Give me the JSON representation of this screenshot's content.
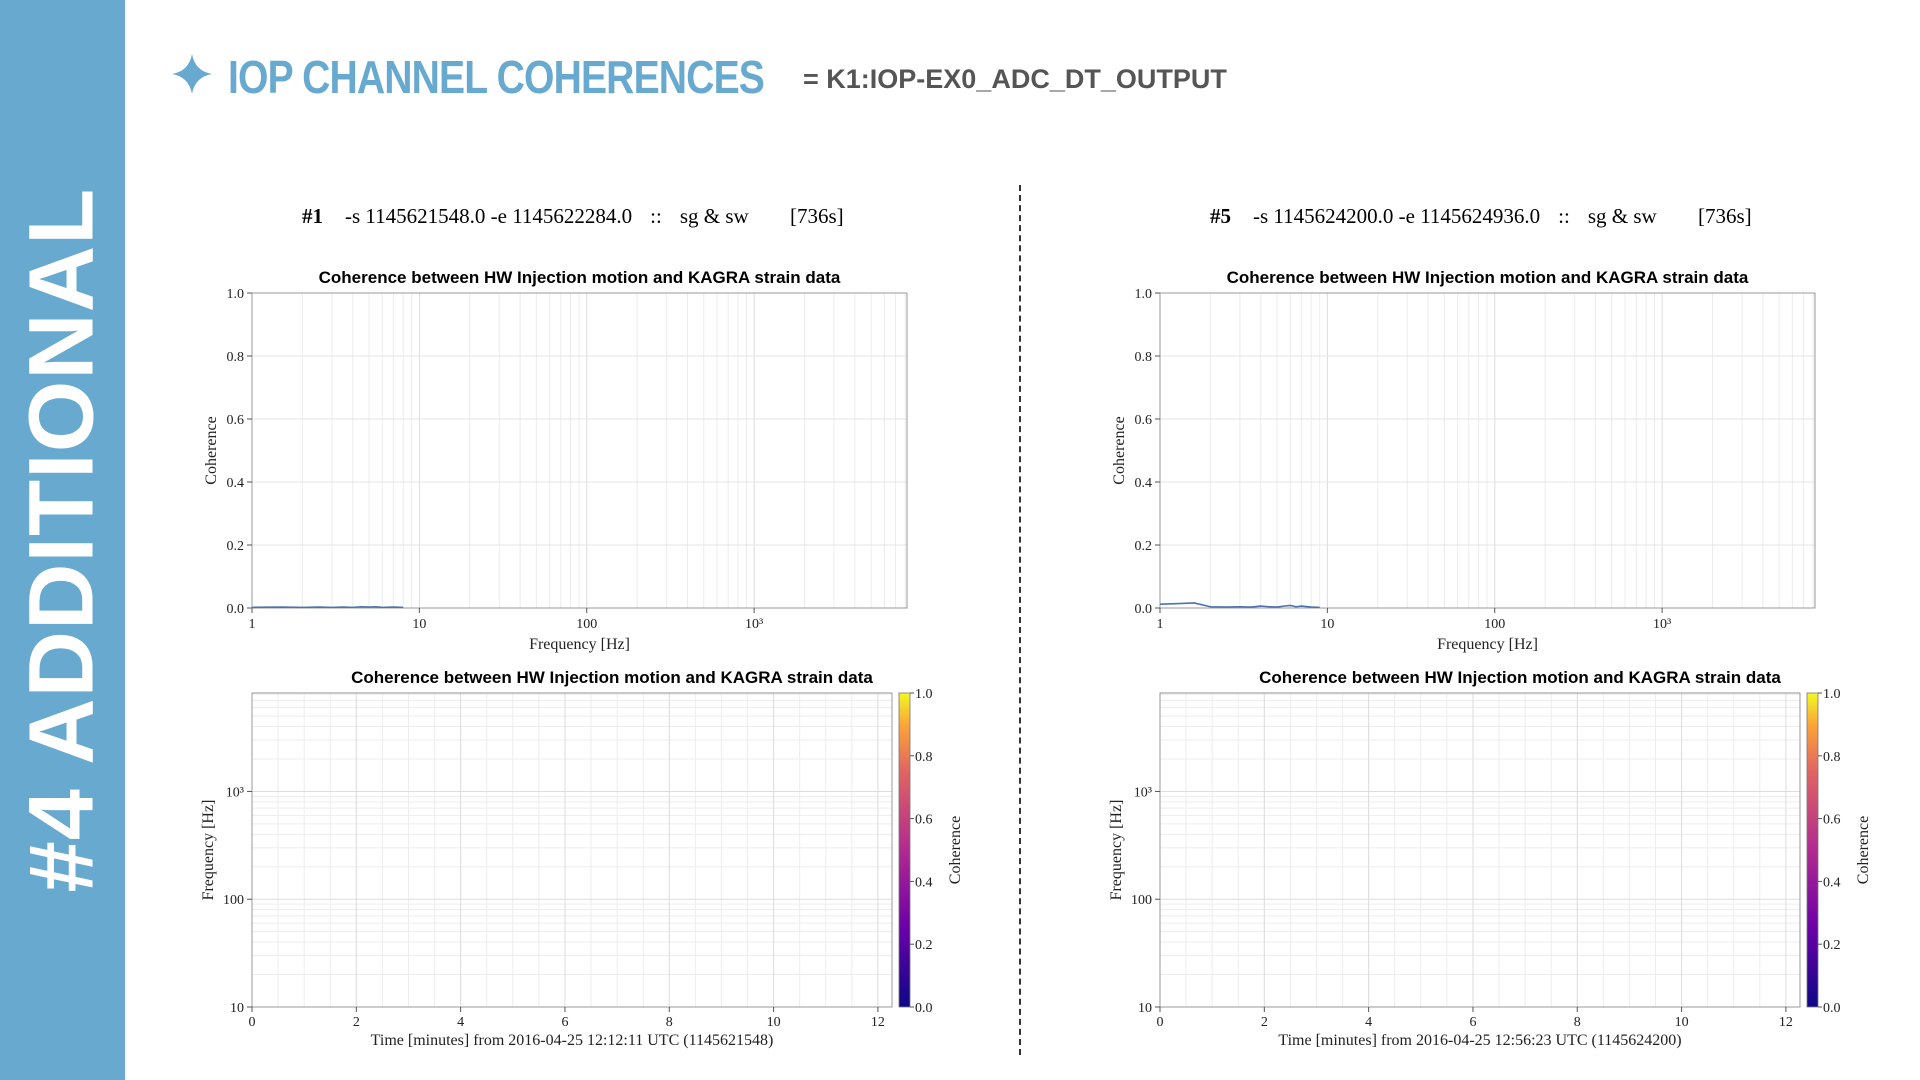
{
  "slide": {
    "side_label": "#4 ADDITIONAL",
    "title": "IOP CHANNEL COHERENCES",
    "channel": "= K1:IOP-EX0_ADC_DT_OUTPUT",
    "accent_color": "#68a9cf",
    "title_icon": "four-point-star-icon"
  },
  "runs": [
    {
      "index_label": "#1",
      "range_text": "-s 1145621548.0 -e 1145622284.0",
      "sep": "::",
      "channels_text": "sg & sw",
      "duration_text": "[736s]"
    },
    {
      "index_label": "#5",
      "range_text": "-s 1145624200.0 -e 1145624936.0",
      "sep": "::",
      "channels_text": "sg & sw",
      "duration_text": "[736s]"
    }
  ],
  "chart_data": [
    {
      "type": "line",
      "title": "Coherence between HW Injection motion and KAGRA strain data",
      "xlabel": "Frequency [Hz]",
      "ylabel": "Coherence",
      "xscale": "log",
      "xlim": [
        1,
        8192
      ],
      "ylim": [
        0,
        1
      ],
      "xticks": [
        1,
        10,
        100,
        1000
      ],
      "xtick_labels": [
        "1",
        "10",
        "100",
        "10³"
      ],
      "yticks": [
        0.0,
        0.2,
        0.4,
        0.6,
        0.8,
        1.0
      ],
      "ytick_labels": [
        "0.0",
        "0.2",
        "0.4",
        "0.6",
        "0.8",
        "1.0"
      ],
      "grid": true,
      "line_color": "#4c72b0",
      "series": [
        {
          "x": [
            1,
            1.5,
            2,
            2.5,
            3,
            3.5,
            4,
            4.5,
            5,
            5.5,
            6,
            7,
            8
          ],
          "y": [
            0.002,
            0.003,
            0.002,
            0.003,
            0.002,
            0.003,
            0.002,
            0.004,
            0.003,
            0.004,
            0.002,
            0.003,
            0.002
          ]
        }
      ]
    },
    {
      "type": "heatmap",
      "title": "Coherence between HW Injection motion and KAGRA strain data",
      "xlabel": "Time [minutes] from 2016-04-25 12:12:11 UTC (1145621548)",
      "ylabel": "Frequency [Hz]",
      "xlim": [
        0,
        12.27
      ],
      "ylim": [
        10,
        8192
      ],
      "yscale": "log",
      "xticks": [
        0,
        2,
        4,
        6,
        8,
        10,
        12
      ],
      "yticks": [
        10,
        100,
        1000
      ],
      "ytick_labels": [
        "10",
        "100",
        "10³"
      ],
      "colorbar": {
        "label": "Coherence",
        "range": [
          0,
          1
        ],
        "ticks": [
          "0.0",
          "0.2",
          "0.4",
          "0.6",
          "0.8",
          "1.0"
        ],
        "colormap": "plasma"
      },
      "grid": true
    },
    {
      "type": "line",
      "title": "Coherence between HW Injection motion and KAGRA strain data",
      "xlabel": "Frequency [Hz]",
      "ylabel": "Coherence",
      "xscale": "log",
      "xlim": [
        1,
        8192
      ],
      "ylim": [
        0,
        1
      ],
      "xticks": [
        1,
        10,
        100,
        1000
      ],
      "xtick_labels": [
        "1",
        "10",
        "100",
        "10³"
      ],
      "yticks": [
        0.0,
        0.2,
        0.4,
        0.6,
        0.8,
        1.0
      ],
      "ytick_labels": [
        "0.0",
        "0.2",
        "0.4",
        "0.6",
        "0.8",
        "1.0"
      ],
      "grid": true,
      "line_color": "#4c72b0",
      "series": [
        {
          "x": [
            1,
            1.3,
            1.6,
            2,
            2.5,
            3,
            3.5,
            4,
            4.5,
            5,
            5.5,
            6,
            6.5,
            7,
            8,
            9
          ],
          "y": [
            0.012,
            0.014,
            0.016,
            0.004,
            0.003,
            0.004,
            0.003,
            0.006,
            0.004,
            0.003,
            0.006,
            0.008,
            0.004,
            0.006,
            0.003,
            0.002
          ]
        }
      ]
    },
    {
      "type": "heatmap",
      "title": "Coherence between HW Injection motion and KAGRA strain data",
      "xlabel": "Time [minutes] from 2016-04-25 12:56:23 UTC (1145624200)",
      "ylabel": "Frequency [Hz]",
      "xlim": [
        0,
        12.27
      ],
      "ylim": [
        10,
        8192
      ],
      "yscale": "log",
      "xticks": [
        0,
        2,
        4,
        6,
        8,
        10,
        12
      ],
      "yticks": [
        10,
        100,
        1000
      ],
      "ytick_labels": [
        "10",
        "100",
        "10³"
      ],
      "colorbar": {
        "label": "Coherence",
        "range": [
          0,
          1
        ],
        "ticks": [
          "0.0",
          "0.2",
          "0.4",
          "0.6",
          "0.8",
          "1.0"
        ],
        "colormap": "plasma"
      },
      "grid": true
    }
  ]
}
